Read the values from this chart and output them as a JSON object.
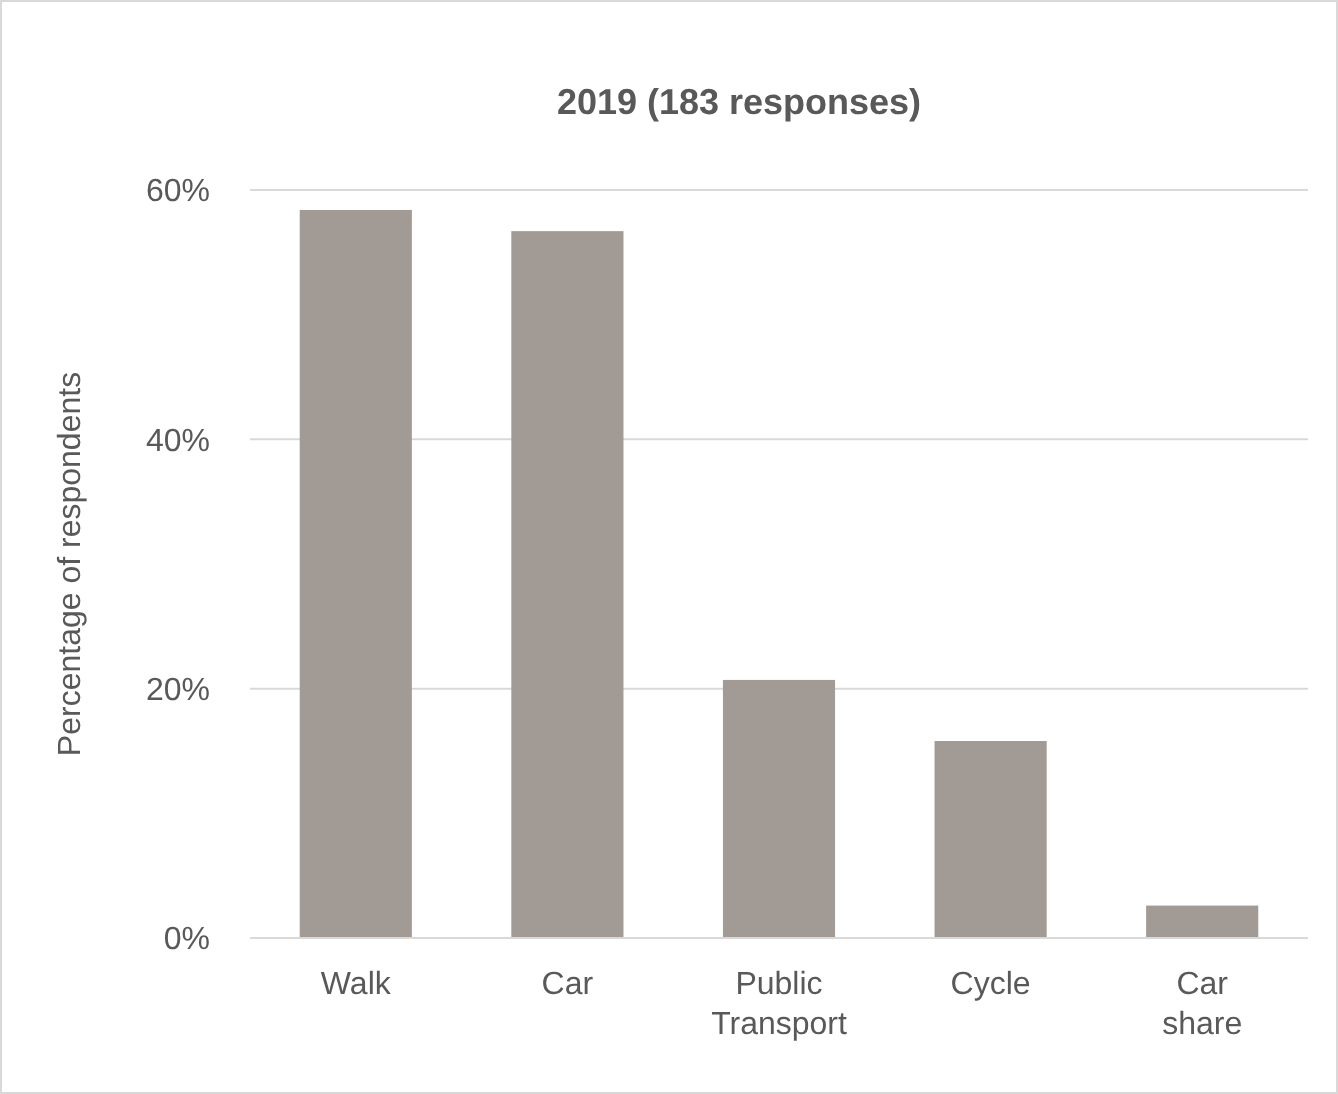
{
  "chart_data": {
    "type": "bar",
    "title": "2019 (183 responses)",
    "ylabel": "Percentage of respondents",
    "categories": [
      "Walk",
      "Car",
      "Public Transport",
      "Cycle",
      "Car share"
    ],
    "values": [
      58.4,
      56.7,
      20.7,
      15.8,
      2.6
    ],
    "color": "#a29a94",
    "ylim": [
      0,
      60
    ],
    "yticks": [
      {
        "value": 0,
        "label": "0%"
      },
      {
        "value": 20,
        "label": "20%"
      },
      {
        "value": 40,
        "label": "40%"
      },
      {
        "value": 60,
        "label": "60%"
      }
    ],
    "grid": "y"
  }
}
